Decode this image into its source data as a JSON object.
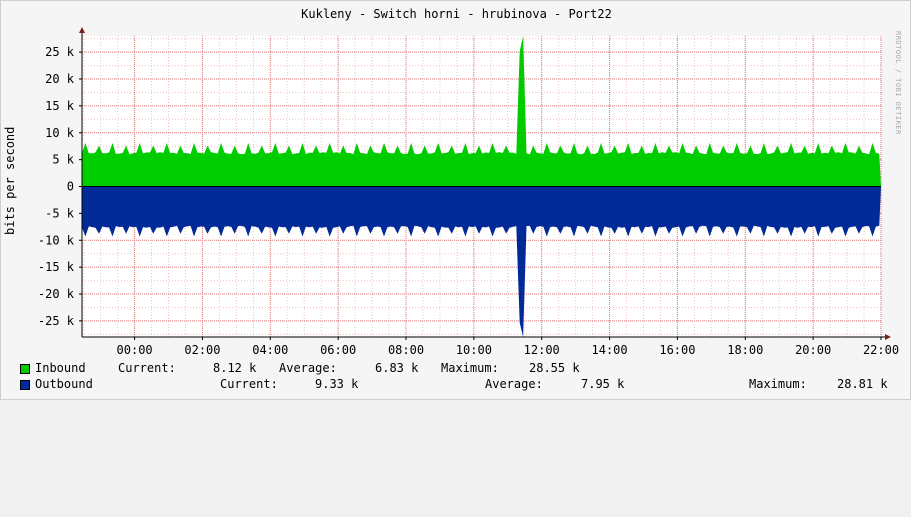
{
  "chart_data": {
    "type": "area",
    "title": "Kukleny - Switch horni - hrubinova - Port22",
    "ylabel": "bits per second",
    "watermark": "RRDTOOL / TOBI OETIKER",
    "ylim": [
      -28000,
      28000
    ],
    "y_ticks": [
      {
        "v": 25000,
        "label": "25 k"
      },
      {
        "v": 20000,
        "label": "20 k"
      },
      {
        "v": 15000,
        "label": "15 k"
      },
      {
        "v": 10000,
        "label": "10 k"
      },
      {
        "v": 5000,
        "label": "5 k"
      },
      {
        "v": 0,
        "label": "0"
      },
      {
        "v": -5000,
        "label": "-5 k"
      },
      {
        "v": -10000,
        "label": "-10 k"
      },
      {
        "v": -15000,
        "label": "-15 k"
      },
      {
        "v": -20000,
        "label": "-20 k"
      },
      {
        "v": -25000,
        "label": "-25 k"
      }
    ],
    "x_range_hours": [
      -1.55,
      22.0
    ],
    "x_ticks": [
      "00:00",
      "02:00",
      "04:00",
      "06:00",
      "08:00",
      "10:00",
      "12:00",
      "14:00",
      "16:00",
      "18:00",
      "20:00",
      "22:00"
    ],
    "series": [
      {
        "name": "Inbound",
        "color": "#00cc00",
        "base_value": 6200,
        "peak_value": 8100,
        "spike_at": "11:25",
        "spike_value": 28550,
        "direction": "up"
      },
      {
        "name": "Outbound",
        "color": "#002a97",
        "base_value": 7500,
        "peak_value": 9300,
        "spike_at": "11:25",
        "spike_value": 28810,
        "direction": "down"
      }
    ],
    "grid": true
  },
  "legend": {
    "inbound": {
      "name": "Inbound",
      "current_label": "Current:",
      "current": "8.12 k",
      "average_label": "Average:",
      "average": "6.83 k",
      "maximum_label": "Maximum:",
      "maximum": "28.55 k"
    },
    "outbound": {
      "name": "Outbound",
      "current_label": "Current:",
      "current": "9.33 k",
      "average_label": "Average:",
      "average": "7.95 k",
      "maximum_label": "Maximum:",
      "maximum": "28.81 k"
    }
  },
  "colors": {
    "inbound": "#00cc00",
    "outbound": "#002a97",
    "grid_major": "#e08080",
    "grid_minor": "#f0c0c0",
    "axis": "#000000"
  }
}
